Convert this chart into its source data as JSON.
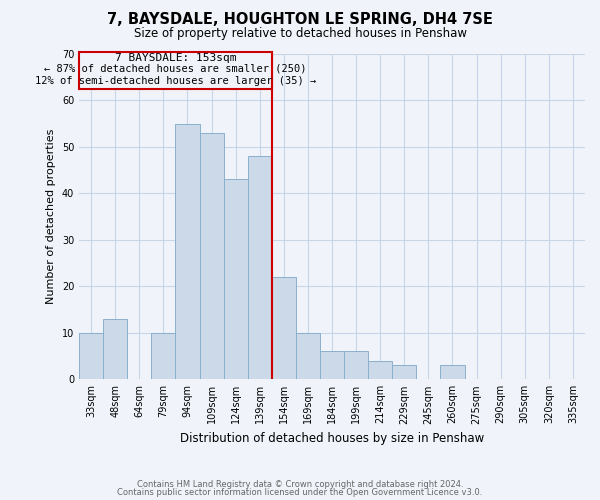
{
  "title": "7, BAYSDALE, HOUGHTON LE SPRING, DH4 7SE",
  "subtitle": "Size of property relative to detached houses in Penshaw",
  "xlabel": "Distribution of detached houses by size in Penshaw",
  "ylabel": "Number of detached properties",
  "bar_color": "#ccd9e8",
  "bar_edge_color": "#8ab0cc",
  "bins": [
    "33sqm",
    "48sqm",
    "64sqm",
    "79sqm",
    "94sqm",
    "109sqm",
    "124sqm",
    "139sqm",
    "154sqm",
    "169sqm",
    "184sqm",
    "199sqm",
    "214sqm",
    "229sqm",
    "245sqm",
    "260sqm",
    "275sqm",
    "290sqm",
    "305sqm",
    "320sqm",
    "335sqm"
  ],
  "values": [
    10,
    13,
    0,
    10,
    55,
    53,
    43,
    48,
    22,
    10,
    6,
    6,
    4,
    3,
    0,
    3,
    0,
    0,
    0,
    0,
    0
  ],
  "ylim": [
    0,
    70
  ],
  "yticks": [
    0,
    10,
    20,
    30,
    40,
    50,
    60,
    70
  ],
  "vline_index": 8,
  "vline_color": "#cc0000",
  "annotation_title": "7 BAYSDALE: 153sqm",
  "annotation_line1": "← 87% of detached houses are smaller (250)",
  "annotation_line2": "12% of semi-detached houses are larger (35) →",
  "annotation_box_edge": "#cc0000",
  "footer_line1": "Contains HM Land Registry data © Crown copyright and database right 2024.",
  "footer_line2": "Contains public sector information licensed under the Open Government Licence v3.0.",
  "background_color": "#f0f4fa",
  "grid_color": "#c8d4e8"
}
